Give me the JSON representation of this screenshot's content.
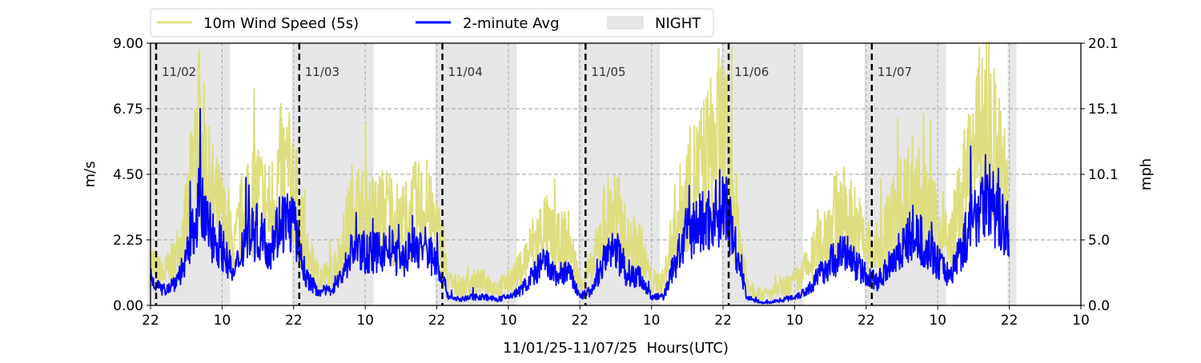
{
  "chart_data": {
    "type": "line",
    "xlabel": "11/01/25-11/07/25  Hours(UTC)",
    "ylabel_left": "m/s",
    "ylabel_right": "mph",
    "ylim": [
      0,
      9
    ],
    "xlim_hours": [
      0,
      156
    ],
    "x_tick_labels": [
      "22",
      "10",
      "22",
      "10",
      "22",
      "10",
      "22",
      "10",
      "22",
      "10",
      "22",
      "10",
      "22",
      "10"
    ],
    "y_ticks_left": [
      "0.00",
      "2.25",
      "4.50",
      "6.75",
      "9.00"
    ],
    "y_ticks_left_values": [
      0,
      2.25,
      4.5,
      6.75,
      9
    ],
    "y_ticks_right": [
      "0.0",
      "5.0",
      "10.1",
      "15.1",
      "20.1"
    ],
    "grid": "horizontal dashed",
    "legend": {
      "placement": "top",
      "entries": [
        "10m Wind Speed (5s)",
        "2-minute Avg",
        "NIGHT"
      ]
    },
    "day_markers": [
      {
        "hour": 0.94,
        "label": "11/02"
      },
      {
        "hour": 24.94,
        "label": "11/03"
      },
      {
        "hour": 48.94,
        "label": "11/04"
      },
      {
        "hour": 72.94,
        "label": "11/05"
      },
      {
        "hour": 96.94,
        "label": "11/06"
      },
      {
        "hour": 120.94,
        "label": "11/07"
      }
    ],
    "night_periods_hours": [
      [
        -0.5,
        13.3
      ],
      [
        23.7,
        37.4
      ],
      [
        47.7,
        61.4
      ],
      [
        71.7,
        85.4
      ],
      [
        95.7,
        109.4
      ],
      [
        119.7,
        133.4
      ],
      [
        143.7,
        145.2
      ]
    ],
    "x_step_hours": 2,
    "series": [
      {
        "name": "2-minute Avg",
        "color": "#0000ff",
        "values": [
          1.0,
          0.5,
          0.8,
          1.5,
          3.5,
          2.5,
          2.0,
          1.0,
          2.5,
          2.5,
          2.0,
          3.0,
          2.8,
          1.0,
          0.5,
          0.5,
          1.0,
          2.0,
          1.8,
          1.8,
          2.0,
          1.5,
          2.0,
          2.0,
          1.5,
          0.3,
          0.2,
          0.3,
          0.3,
          0.2,
          0.3,
          0.5,
          1.0,
          1.5,
          1.0,
          1.2,
          0.3,
          0.5,
          1.5,
          2.0,
          1.0,
          1.0,
          0.3,
          0.3,
          1.5,
          2.5,
          2.8,
          3.0,
          3.5,
          2.0,
          0.3,
          0.1,
          0.1,
          0.2,
          0.3,
          0.5,
          1.0,
          1.5,
          1.8,
          1.5,
          1.0,
          0.8,
          1.5,
          2.0,
          2.5,
          2.0,
          1.5,
          1.0,
          2.0,
          3.0,
          4.0,
          3.0,
          2.5
        ]
      },
      {
        "name": "10m Wind Speed (5s)",
        "color": "#dede80",
        "values": [
          1.5,
          1.0,
          1.5,
          2.8,
          6.0,
          3.8,
          3.0,
          1.8,
          3.6,
          3.8,
          3.2,
          4.6,
          4.2,
          1.8,
          1.0,
          1.0,
          1.8,
          3.4,
          3.0,
          3.0,
          3.2,
          2.6,
          3.2,
          3.2,
          2.6,
          0.8,
          0.6,
          0.8,
          0.8,
          0.6,
          0.8,
          1.2,
          2.0,
          2.6,
          2.0,
          2.2,
          0.8,
          1.2,
          2.8,
          3.2,
          2.0,
          2.0,
          0.8,
          0.8,
          2.8,
          3.8,
          4.5,
          5.2,
          6.0,
          3.2,
          0.8,
          0.4,
          0.4,
          0.6,
          0.8,
          1.2,
          2.0,
          2.8,
          3.2,
          2.8,
          2.0,
          1.8,
          2.8,
          3.4,
          4.0,
          3.2,
          2.6,
          2.0,
          3.6,
          5.0,
          6.5,
          5.0,
          3.6
        ]
      }
    ]
  }
}
